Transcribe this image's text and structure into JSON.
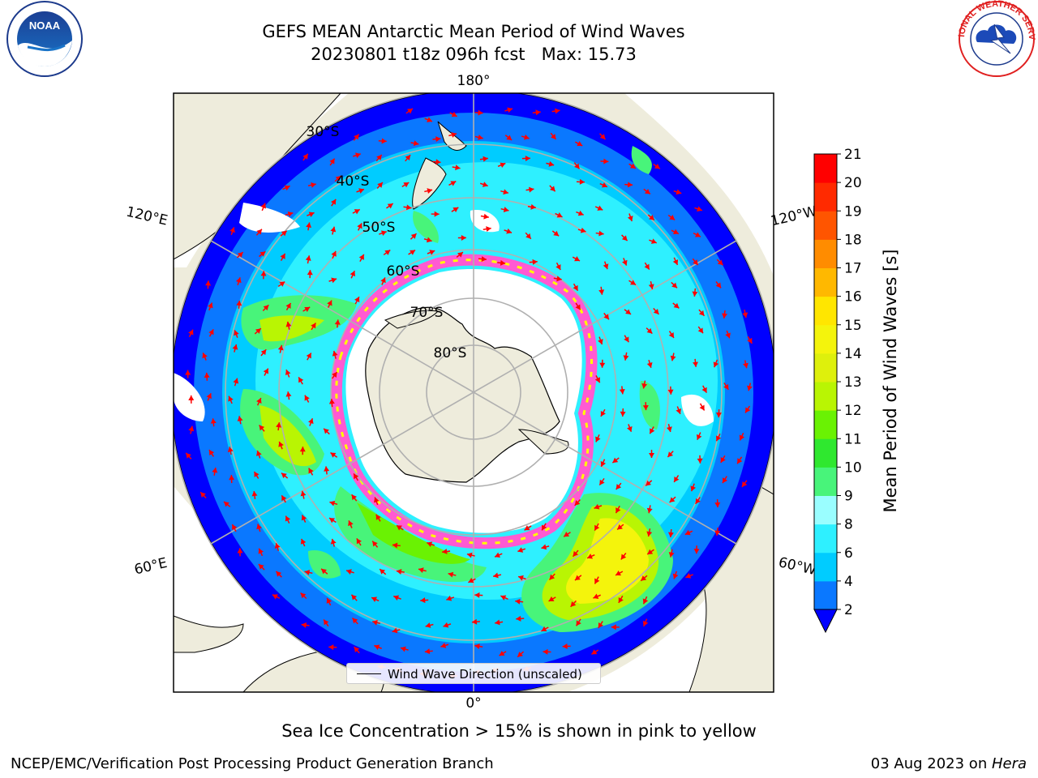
{
  "header": {
    "title_line1": "GEFS MEAN Antarctic Mean Period of Wind Waves",
    "title_line2": "20230801 t18z 096h fcst   Max: 15.73"
  },
  "map": {
    "longitude_labels": [
      "180°",
      "120°E",
      "120°W",
      "60°E",
      "60°W",
      "0°"
    ],
    "latitude_labels": [
      "30°S",
      "40°S",
      "50°S",
      "60°S",
      "70°S",
      "80°S"
    ],
    "land_color": "#eeecdc",
    "ice_edge_colors": [
      "#ff5ad2",
      "#ffff00"
    ],
    "arrow_color": "#ff0000",
    "legend_label": "Wind Wave Direction (unscaled)"
  },
  "colorbar": {
    "label": "Mean Period of Wind Waves [s]",
    "ticks": [
      "2",
      "4",
      "6",
      "8",
      "9",
      "10",
      "11",
      "12",
      "13",
      "14",
      "15",
      "16",
      "17",
      "18",
      "19",
      "20",
      "21"
    ],
    "colors": [
      "#0a78ff",
      "#00ccff",
      "#2ef0ff",
      "#9afeff",
      "#48f47a",
      "#2fe82f",
      "#6af203",
      "#b9f503",
      "#def00c",
      "#f4f40c",
      "#ffe600",
      "#ffb800",
      "#ff8c00",
      "#ff5500",
      "#ff2a00",
      "#ff0000"
    ],
    "under_color": "#0000ff"
  },
  "caption": "Sea Ice Concentration > 15% is shown in pink to yellow",
  "footer": {
    "org": "NCEP/EMC/Verification Post Processing Product Generation Branch",
    "date": "03 Aug 2023 on ",
    "machine": "Hera"
  },
  "logos": {
    "noaa": "NOAA",
    "nws": "NATIONAL WEATHER SERVICE"
  }
}
